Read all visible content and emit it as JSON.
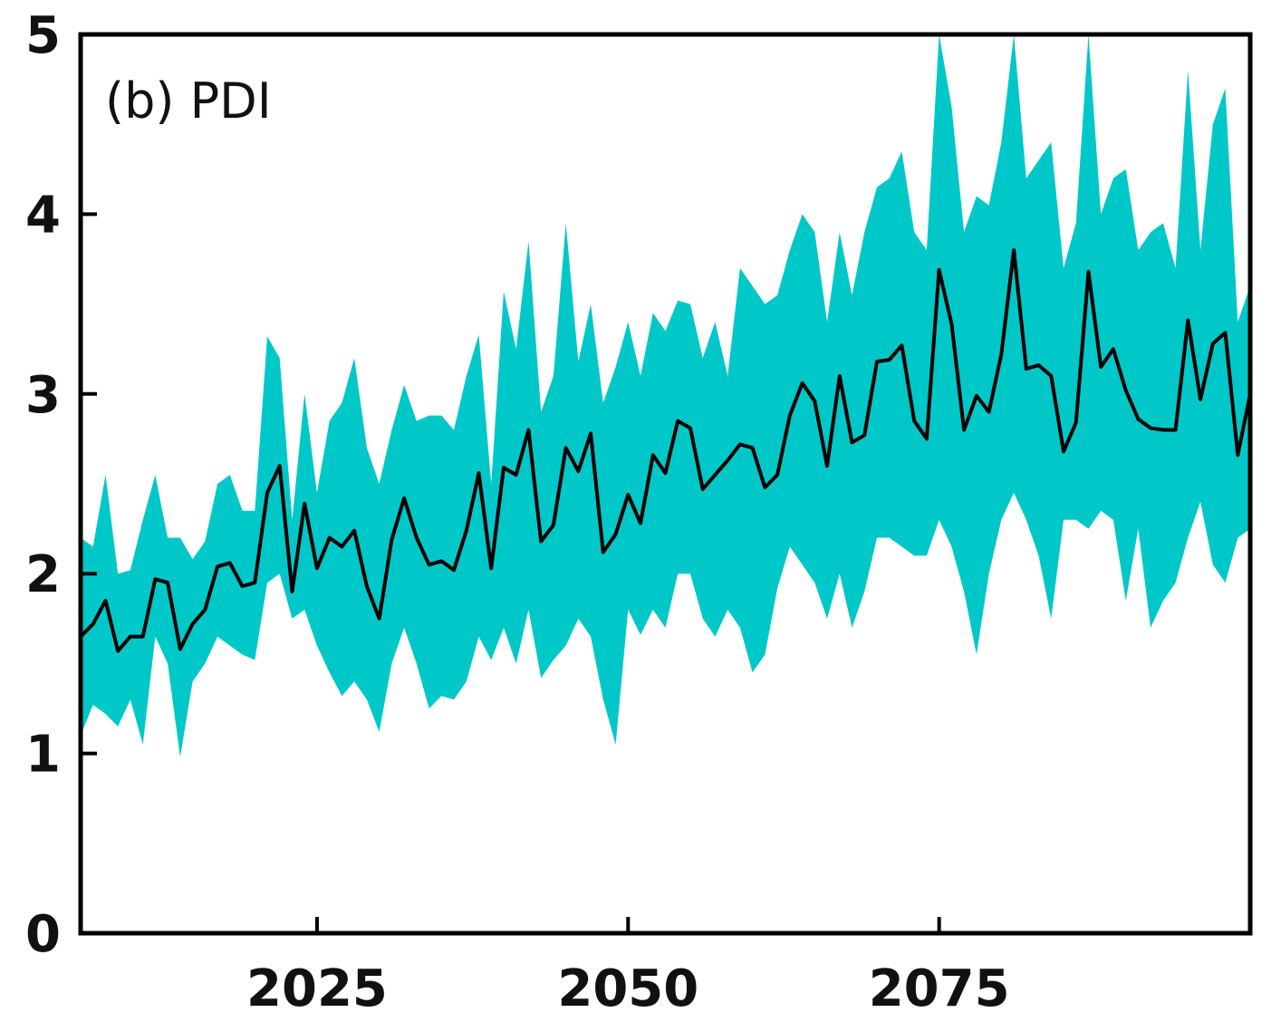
{
  "chart_data": {
    "type": "area",
    "title": "(b) PDI",
    "xlabel": "",
    "ylabel": "",
    "xlim": [
      2006,
      2100
    ],
    "ylim": [
      0,
      5
    ],
    "xticks": [
      2025,
      2050,
      2075
    ],
    "xtick_labels": [
      "2025",
      "2050",
      "2075"
    ],
    "yticks": [
      0,
      1,
      2,
      3,
      4,
      5
    ],
    "ytick_labels": [
      "0",
      "1",
      "2",
      "3",
      "4",
      "5"
    ],
    "grid": false,
    "legend": "none",
    "colors": {
      "band": "#00c8c8",
      "line": "#000000",
      "axes": "#000000"
    },
    "x": [
      2006,
      2007,
      2008,
      2009,
      2010,
      2011,
      2012,
      2013,
      2014,
      2015,
      2016,
      2017,
      2018,
      2019,
      2020,
      2021,
      2022,
      2023,
      2024,
      2025,
      2026,
      2027,
      2028,
      2029,
      2030,
      2031,
      2032,
      2033,
      2034,
      2035,
      2036,
      2037,
      2038,
      2039,
      2040,
      2041,
      2042,
      2043,
      2044,
      2045,
      2046,
      2047,
      2048,
      2049,
      2050,
      2051,
      2052,
      2053,
      2054,
      2055,
      2056,
      2057,
      2058,
      2059,
      2060,
      2061,
      2062,
      2063,
      2064,
      2065,
      2066,
      2067,
      2068,
      2069,
      2070,
      2071,
      2072,
      2073,
      2074,
      2075,
      2076,
      2077,
      2078,
      2079,
      2080,
      2081,
      2082,
      2083,
      2084,
      2085,
      2086,
      2087,
      2088,
      2089,
      2090,
      2091,
      2092,
      2093,
      2094,
      2095,
      2096,
      2097,
      2098,
      2099,
      2100
    ],
    "series": [
      {
        "role": "mean",
        "values": [
          1.65,
          1.72,
          1.85,
          1.57,
          1.65,
          1.65,
          1.97,
          1.95,
          1.58,
          1.72,
          1.8,
          2.04,
          2.06,
          1.93,
          1.95,
          2.45,
          2.6,
          1.9,
          2.39,
          2.03,
          2.2,
          2.15,
          2.24,
          1.93,
          1.75,
          2.19,
          2.42,
          2.2,
          2.05,
          2.07,
          2.02,
          2.24,
          2.56,
          2.03,
          2.59,
          2.55,
          2.8,
          2.18,
          2.27,
          2.7,
          2.57,
          2.78,
          2.12,
          2.22,
          2.44,
          2.28,
          2.66,
          2.56,
          2.85,
          2.81,
          2.47,
          2.55,
          2.63,
          2.72,
          2.7,
          2.48,
          2.55,
          2.88,
          3.06,
          2.96,
          2.6,
          3.1,
          2.73,
          2.77,
          3.18,
          3.19,
          3.27,
          2.85,
          2.75,
          3.69,
          3.39,
          2.8,
          2.99,
          2.9,
          3.22,
          3.8,
          3.14,
          3.16,
          3.1,
          2.68,
          2.84,
          3.68,
          3.15,
          3.25,
          3.02,
          2.86,
          2.81,
          2.8,
          2.8,
          3.41,
          2.97,
          3.28,
          3.34,
          2.66,
          3.0
        ]
      },
      {
        "role": "upper",
        "values": [
          2.2,
          2.15,
          2.55,
          2.0,
          2.02,
          2.3,
          2.55,
          2.2,
          2.2,
          2.08,
          2.18,
          2.5,
          2.55,
          2.35,
          2.35,
          3.32,
          3.2,
          2.3,
          3.0,
          2.45,
          2.85,
          2.95,
          3.2,
          2.7,
          2.5,
          2.8,
          3.05,
          2.85,
          2.88,
          2.88,
          2.8,
          3.1,
          3.33,
          2.5,
          3.57,
          3.25,
          3.85,
          2.9,
          3.1,
          3.95,
          3.18,
          3.5,
          2.95,
          3.15,
          3.4,
          3.1,
          3.45,
          3.35,
          3.52,
          3.5,
          3.2,
          3.4,
          3.1,
          3.7,
          3.6,
          3.5,
          3.55,
          3.8,
          4.0,
          3.9,
          3.4,
          3.9,
          3.55,
          3.9,
          4.15,
          4.2,
          4.35,
          3.9,
          3.8,
          5.0,
          4.6,
          3.9,
          4.1,
          4.05,
          4.4,
          5.0,
          4.2,
          4.3,
          4.4,
          3.7,
          3.95,
          5.0,
          4.0,
          4.2,
          4.25,
          3.8,
          3.9,
          3.95,
          3.7,
          4.8,
          3.8,
          4.5,
          4.7,
          3.4,
          3.6
        ]
      },
      {
        "role": "lower",
        "values": [
          1.1,
          1.27,
          1.22,
          1.15,
          1.3,
          1.05,
          1.65,
          1.5,
          0.98,
          1.4,
          1.5,
          1.65,
          1.6,
          1.55,
          1.52,
          1.95,
          2.0,
          1.75,
          1.8,
          1.6,
          1.45,
          1.32,
          1.4,
          1.3,
          1.12,
          1.5,
          1.7,
          1.5,
          1.25,
          1.32,
          1.3,
          1.4,
          1.65,
          1.52,
          1.7,
          1.5,
          1.8,
          1.42,
          1.52,
          1.6,
          1.75,
          1.65,
          1.3,
          1.05,
          1.8,
          1.66,
          1.8,
          1.7,
          2.0,
          2.0,
          1.75,
          1.65,
          1.8,
          1.7,
          1.45,
          1.55,
          1.92,
          2.15,
          2.05,
          1.95,
          1.75,
          2.0,
          1.7,
          1.9,
          2.2,
          2.2,
          2.15,
          2.1,
          2.1,
          2.3,
          2.15,
          1.9,
          1.55,
          2.0,
          2.3,
          2.45,
          2.3,
          2.1,
          1.75,
          2.3,
          2.3,
          2.25,
          2.35,
          2.3,
          1.85,
          2.25,
          1.7,
          1.85,
          1.95,
          2.2,
          2.4,
          2.05,
          1.95,
          2.2,
          2.25
        ]
      }
    ]
  }
}
